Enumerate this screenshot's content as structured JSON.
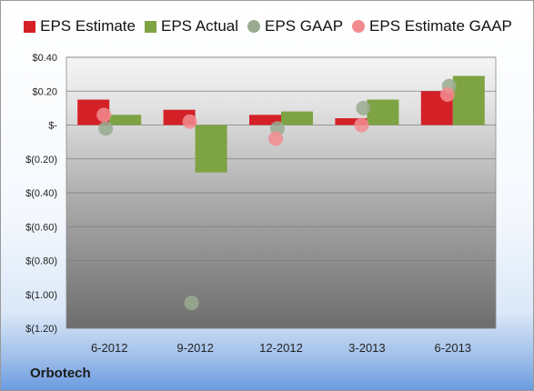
{
  "brand": "Orbotech",
  "legend": [
    {
      "label": "EPS Estimate",
      "shape": "square",
      "color": "#d42128"
    },
    {
      "label": "EPS Actual",
      "shape": "square",
      "color": "#7ea343"
    },
    {
      "label": "EPS GAAP",
      "shape": "circle",
      "color": "#99ab8f"
    },
    {
      "label": "EPS Estimate GAAP",
      "shape": "circle",
      "color": "#f28b8f"
    }
  ],
  "chart_data": {
    "type": "bar",
    "categories": [
      "6-2012",
      "9-2012",
      "12-2012",
      "3-2013",
      "6-2013"
    ],
    "ylim": [
      -1.2,
      0.4
    ],
    "yticks": [
      0.4,
      0.2,
      0,
      -0.2,
      -0.4,
      -0.6,
      -0.8,
      -1.0,
      -1.2
    ],
    "ytick_labels": [
      "$0.40",
      "$0.20",
      "$-",
      "$(0.20)",
      "$(0.40)",
      "$(0.60)",
      "$(0.80)",
      "$(1.00)",
      "$(1.20)"
    ],
    "grid": true,
    "legend_position": "top",
    "series": [
      {
        "name": "EPS Estimate",
        "kind": "bar",
        "color": "#d42128",
        "values": [
          0.15,
          0.09,
          0.06,
          0.04,
          0.2
        ]
      },
      {
        "name": "EPS Actual",
        "kind": "bar",
        "color": "#7ea343",
        "values": [
          0.06,
          -0.28,
          0.08,
          0.15,
          0.29
        ]
      },
      {
        "name": "EPS GAAP",
        "kind": "dot",
        "color": "#99ab8f",
        "values": [
          -0.02,
          -1.05,
          -0.02,
          0.1,
          0.23
        ]
      },
      {
        "name": "EPS Estimate GAAP",
        "kind": "dot",
        "color": "#f28b8f",
        "values": [
          0.06,
          0.02,
          -0.08,
          0.0,
          0.18
        ]
      }
    ]
  }
}
